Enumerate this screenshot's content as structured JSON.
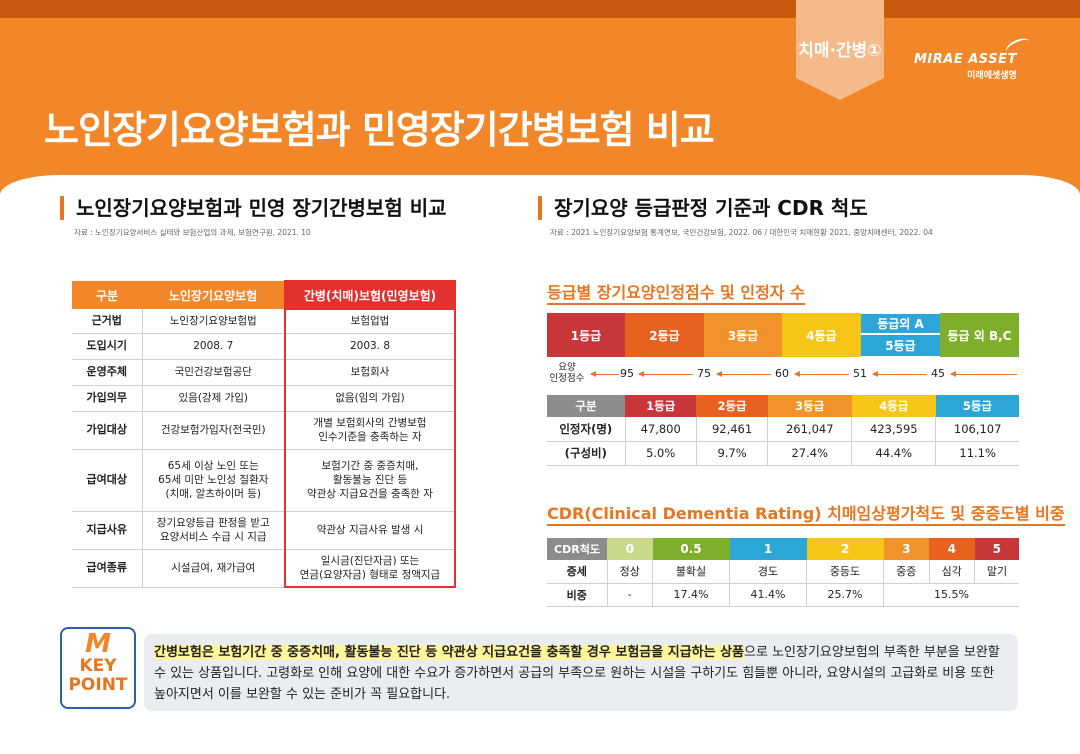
{
  "header": {
    "ribbon_label": "치매·간병①",
    "brand_en": "MIRAE ASSET",
    "brand_ko": "미래에셋생명",
    "title": "노인장기요양보험과 민영장기간병보험 비교"
  },
  "left": {
    "title": "노인장기요양보험과 민영 장기간병보험 비교",
    "source": "자료 : 노인장기요양서비스 실태와 보험산업의 과제, 보험연구원, 2021. 10",
    "table": {
      "headers": [
        "구분",
        "노인장기요양보험",
        "간병(치매)보험(민영보험)"
      ],
      "rows": [
        {
          "label": "근거법",
          "public": "노인장기요양보험법",
          "private": "보험업법"
        },
        {
          "label": "도입시기",
          "public": "2008. 7",
          "private": "2003. 8"
        },
        {
          "label": "운영주체",
          "public": "국민건강보험공단",
          "private": "보험회사"
        },
        {
          "label": "가입의무",
          "public": "있음(강제 가입)",
          "private": "없음(임의 가입)"
        },
        {
          "label": "가입대상",
          "public": "건강보험가입자(전국민)",
          "private": "개별 보험회사의 간병보험\n인수기준을 충족하는 자"
        },
        {
          "label": "급여대상",
          "public": "65세 이상 노인 또는\n65세 미만 노인성 질환자\n(치매, 알츠하이머 등)",
          "private": "보험기간 중 중증치매,\n활동불능 진단 등\n약관상 지급요건을 충족한 자"
        },
        {
          "label": "지급사유",
          "public": "장기요양등급 판정을 받고\n요양서비스 수급 시 지급",
          "private": "약관상 지급사유 발생 시"
        },
        {
          "label": "급여종류",
          "public": "시설급여, 재가급여",
          "private": "일시금(진단자금) 또는\n연금(요양자금) 형태로 정액지급"
        }
      ]
    }
  },
  "right": {
    "title": "장기요양 등급판정 기준과 CDR 척도",
    "source": "자료 : 2021 노인장기요양보험 통계연보, 국민건강보험, 2022. 06 / 대한민국 치매현황 2021, 중앙치매센터, 2022. 04",
    "grade_section": {
      "subtitle": "등급별 장기요양인정점수 및 인정자 수",
      "grades": [
        "1등급",
        "2등급",
        "3등급",
        "4등급",
        "등급외 A",
        "5등급",
        "등급 외 B,C"
      ],
      "score_label": "요양\n인정점수",
      "scores": [
        "95",
        "75",
        "60",
        "51",
        "45"
      ],
      "table_headers": [
        "구분",
        "1등급",
        "2등급",
        "3등급",
        "4등급",
        "5등급"
      ],
      "rows": [
        {
          "label": "인정자(명)",
          "values": [
            "47,800",
            "92,461",
            "261,047",
            "423,595",
            "106,107"
          ]
        },
        {
          "label": "(구성비)",
          "values": [
            "5.0%",
            "9.7%",
            "27.4%",
            "44.4%",
            "11.1%"
          ]
        }
      ]
    },
    "cdr_section": {
      "subtitle": "CDR(Clinical Dementia Rating) 치매임상평가척도 및 중증도별 비중",
      "headers": [
        "CDR척도",
        "0",
        "0.5",
        "1",
        "2",
        "3",
        "4",
        "5"
      ],
      "severity_label": "증세",
      "severity": [
        "정상",
        "불확실",
        "경도",
        "중등도",
        "중증",
        "심각",
        "말기"
      ],
      "share_label": "비중",
      "shares": [
        "-",
        "17.4%",
        "41.4%",
        "25.7%",
        "15.5%"
      ]
    }
  },
  "key_point": {
    "icon_letter": "M",
    "icon_label1": "KEY",
    "icon_label2": "POINT",
    "highlight": "간병보험은 보험기간 중 중증치매, 활동불능 진단 등 약관상 지급요건을 충족할 경우 보험금을 지급하는 상품",
    "text_rest": "으로 노인장기요양보험의 부족한 부분을 보완할 수 있는 상품입니다. 고령화로 인해 요양에 대한 수요가 증가하면서 공급의 부족으로 원하는 시설을 구하기도 힘들뿐 아니라, 요양시설의 고급화로 비용 또한 높아지면서 이를 보완할 수 있는 준비가 꼭 필요합니다."
  },
  "colors": {
    "orange": "#f2872a",
    "dark_orange": "#e8751f",
    "red": "#e53030",
    "g1": "#c8363a",
    "g2": "#e8611f",
    "g3": "#f2922b",
    "g4": "#f5c518",
    "gA": "#2ba6d6",
    "gBC": "#7fae2b",
    "cdr0": "#c9d98a",
    "cdr05": "#7fae2b",
    "cdr1": "#2ba6d6",
    "cdr2": "#f5c518",
    "cdr3": "#f2922b",
    "cdr4": "#e8611f",
    "cdr5": "#c8363a"
  }
}
